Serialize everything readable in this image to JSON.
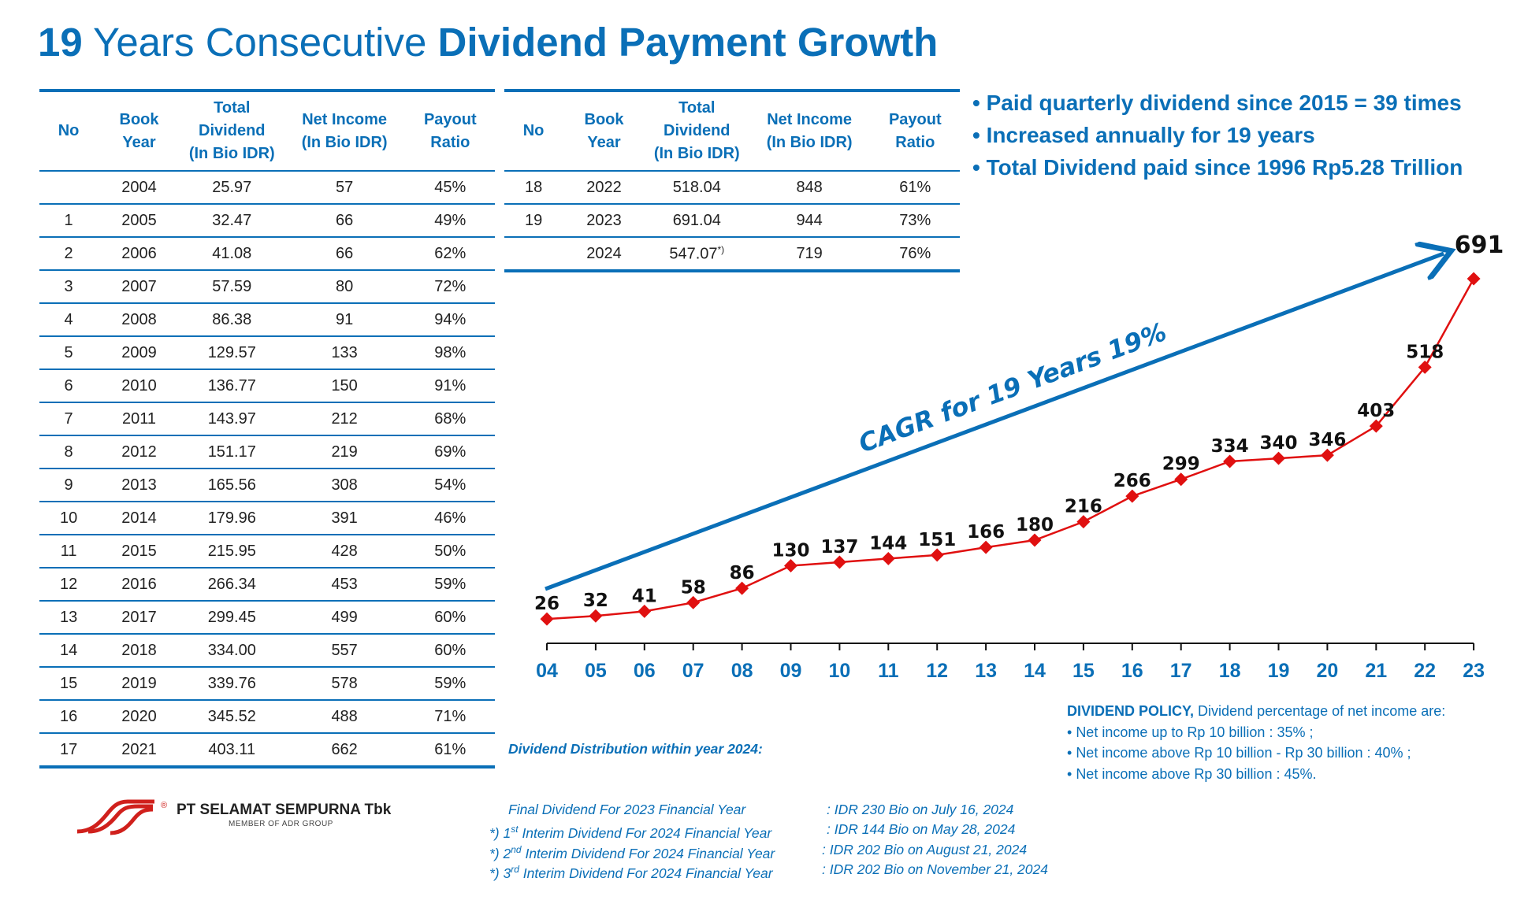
{
  "title": {
    "number": "19",
    "middle": " Years Consecutive ",
    "bold": "Dividend Payment Growth"
  },
  "table_headers": {
    "no": "No",
    "book_year": "Book Year",
    "total_dividend": "Total Dividend",
    "total_dividend_unit": "(In Bio IDR)",
    "net_income": "Net Income",
    "net_income_unit": "(In Bio IDR)",
    "payout_ratio": "Payout Ratio"
  },
  "table_left": [
    {
      "no": "",
      "year": "2004",
      "dividend": "25.97",
      "net_income": "57",
      "payout": "45%"
    },
    {
      "no": "1",
      "year": "2005",
      "dividend": "32.47",
      "net_income": "66",
      "payout": "49%"
    },
    {
      "no": "2",
      "year": "2006",
      "dividend": "41.08",
      "net_income": "66",
      "payout": "62%"
    },
    {
      "no": "3",
      "year": "2007",
      "dividend": "57.59",
      "net_income": "80",
      "payout": "72%"
    },
    {
      "no": "4",
      "year": "2008",
      "dividend": "86.38",
      "net_income": "91",
      "payout": "94%"
    },
    {
      "no": "5",
      "year": "2009",
      "dividend": "129.57",
      "net_income": "133",
      "payout": "98%"
    },
    {
      "no": "6",
      "year": "2010",
      "dividend": "136.77",
      "net_income": "150",
      "payout": "91%"
    },
    {
      "no": "7",
      "year": "2011",
      "dividend": "143.97",
      "net_income": "212",
      "payout": "68%"
    },
    {
      "no": "8",
      "year": "2012",
      "dividend": "151.17",
      "net_income": "219",
      "payout": "69%"
    },
    {
      "no": "9",
      "year": "2013",
      "dividend": "165.56",
      "net_income": "308",
      "payout": "54%"
    },
    {
      "no": "10",
      "year": "2014",
      "dividend": "179.96",
      "net_income": "391",
      "payout": "46%"
    },
    {
      "no": "11",
      "year": "2015",
      "dividend": "215.95",
      "net_income": "428",
      "payout": "50%"
    },
    {
      "no": "12",
      "year": "2016",
      "dividend": "266.34",
      "net_income": "453",
      "payout": "59%"
    },
    {
      "no": "13",
      "year": "2017",
      "dividend": "299.45",
      "net_income": "499",
      "payout": "60%"
    },
    {
      "no": "14",
      "year": "2018",
      "dividend": "334.00",
      "net_income": "557",
      "payout": "60%"
    },
    {
      "no": "15",
      "year": "2019",
      "dividend": "339.76",
      "net_income": "578",
      "payout": "59%"
    },
    {
      "no": "16",
      "year": "2020",
      "dividend": "345.52",
      "net_income": "488",
      "payout": "71%"
    },
    {
      "no": "17",
      "year": "2021",
      "dividend": "403.11",
      "net_income": "662",
      "payout": "61%"
    }
  ],
  "table_right": [
    {
      "no": "18",
      "year": "2022",
      "dividend": "518.04",
      "net_income": "848",
      "payout": "61%"
    },
    {
      "no": "19",
      "year": "2023",
      "dividend": "691.04",
      "net_income": "944",
      "payout": "73%"
    },
    {
      "no": "",
      "year": "2024",
      "dividend": "547.07",
      "dividend_mark": "*)",
      "net_income": "719",
      "payout": "76%"
    }
  ],
  "bullets": [
    "Paid quarterly dividend since 2015 = 39 times",
    "Increased annually for 19 years",
    "Total Dividend paid since 1996 Rp5.28 Trillion"
  ],
  "chart_data": {
    "type": "line",
    "title": "",
    "xlabel": "",
    "ylabel": "",
    "categories": [
      "04",
      "05",
      "06",
      "07",
      "08",
      "09",
      "10",
      "11",
      "12",
      "13",
      "14",
      "15",
      "16",
      "17",
      "18",
      "19",
      "20",
      "21",
      "22",
      "23"
    ],
    "values": [
      26,
      32,
      41,
      58,
      86,
      130,
      137,
      144,
      151,
      166,
      180,
      216,
      266,
      299,
      334,
      340,
      346,
      403,
      518,
      691
    ],
    "ylim": [
      0,
      691
    ],
    "grid": false,
    "legend": "none",
    "annotation": "CAGR for 19 Years 19%",
    "colors": {
      "line": "#e01010",
      "marker": "#e01010",
      "trend_arrow": "#0a6fb7",
      "tick_labels": "#0a6fb7"
    }
  },
  "notes": {
    "title": "Dividend Distribution within year 2024:",
    "rows": [
      {
        "prefix": "",
        "text": "Final Dividend For 2023 Financial Year",
        "sup": "",
        "value": ": IDR 230 Bio on July 16, 2024"
      },
      {
        "prefix": "*) 1",
        "sup": "st",
        "text": " Interim Dividend For 2024 Financial Year",
        "value": ": IDR 144 Bio on May 28, 2024"
      },
      {
        "prefix": "*) 2",
        "sup": "nd",
        "text": " Interim Dividend For 2024 Financial Year",
        "value": ": IDR 202 Bio on August 21, 2024"
      },
      {
        "prefix": "*) 3",
        "sup": "rd",
        "text": " Interim Dividend For 2024 Financial Year",
        "value": ": IDR 202 Bio on November 21, 2024"
      }
    ]
  },
  "policy": {
    "heading": "DIVIDEND POLICY,",
    "intro": " Dividend percentage of net income are:",
    "items": [
      "Net income up to Rp 10 billion : 35% ;",
      "Net income above Rp 10 billion - Rp 30 billion : 40% ;",
      "Net income above Rp 30 billion : 45%."
    ]
  },
  "company": {
    "name": "PT SELAMAT SEMPURNA Tbk",
    "member": "MEMBER OF ADR GROUP",
    "registered": "®"
  },
  "colors": {
    "brand_blue": "#0a6fb7",
    "line_red": "#e01010",
    "logo_red": "#d0201c"
  }
}
